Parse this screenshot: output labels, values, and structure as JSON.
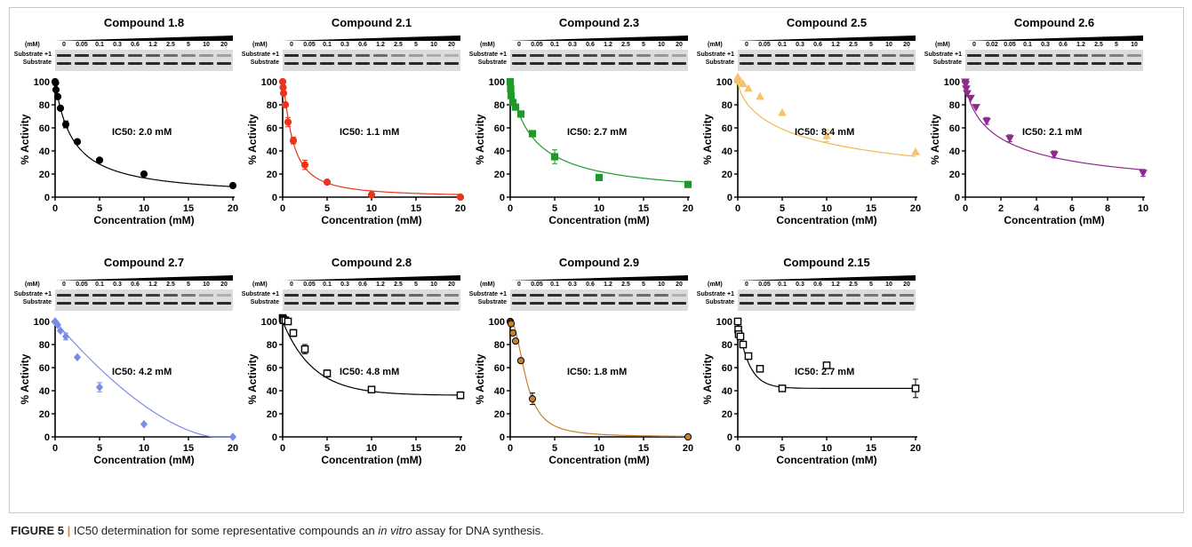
{
  "figure": {
    "label": "FIGURE 5",
    "separator": "|",
    "caption_pre": "IC50 determination for some representative compounds an ",
    "caption_italic": "in vitro",
    "caption_post": " assay for DNA synthesis."
  },
  "gel_labels": {
    "mm": "(mM)",
    "substrate_plus1": "Substrate +1",
    "substrate": "Substrate"
  },
  "axis_labels": {
    "y": "% Activity",
    "x": "Concentration (mM)"
  },
  "chart_data": [
    {
      "type": "scatter",
      "title": "Compound 1.8",
      "ic50_label": "IC50: 2.0 mM",
      "color": "#000000",
      "marker": "circle",
      "filled": true,
      "gel_concentrations": [
        "0",
        "0.05",
        "0.1",
        "0.3",
        "0.6",
        "1.2",
        "2.5",
        "5",
        "10",
        "20"
      ],
      "x": [
        0,
        0.05,
        0.1,
        0.3,
        0.6,
        1.2,
        2.5,
        5,
        10,
        20
      ],
      "y": [
        100,
        99,
        93,
        87,
        77,
        63,
        48,
        32,
        20,
        10
      ],
      "error": [
        0,
        0,
        0,
        0,
        0,
        3,
        0,
        0,
        0,
        0
      ],
      "xlim": [
        0,
        20
      ],
      "xticks": [
        0,
        5,
        10,
        15,
        20
      ],
      "ylim": [
        0,
        100
      ],
      "yticks": [
        0,
        20,
        40,
        60,
        80,
        100
      ],
      "curve": {
        "model": "hill",
        "ic50": 2.0,
        "hill": 1.0
      }
    },
    {
      "type": "scatter",
      "title": "Compound 2.1",
      "ic50_label": "IC50: 1.1 mM",
      "color": "#e8361c",
      "marker": "circle",
      "filled": true,
      "gel_concentrations": [
        "0",
        "0.05",
        "0.1",
        "0.3",
        "0.6",
        "1.2",
        "2.5",
        "5",
        "10",
        "20"
      ],
      "x": [
        0,
        0.05,
        0.1,
        0.3,
        0.6,
        1.2,
        2.5,
        5,
        10,
        20
      ],
      "y": [
        100,
        95,
        90,
        80,
        65,
        49,
        28,
        13,
        2,
        0
      ],
      "error": [
        0,
        0,
        0,
        0,
        4,
        3,
        4,
        0,
        0,
        0
      ],
      "xlim": [
        0,
        20
      ],
      "xticks": [
        0,
        5,
        10,
        15,
        20
      ],
      "ylim": [
        0,
        100
      ],
      "yticks": [
        0,
        20,
        40,
        60,
        80,
        100
      ],
      "curve": {
        "model": "hill",
        "ic50": 1.1,
        "hill": 1.3
      }
    },
    {
      "type": "scatter",
      "title": "Compound 2.3",
      "ic50_label": "IC50: 2.7 mM",
      "color": "#1f9a2a",
      "marker": "square",
      "filled": true,
      "gel_concentrations": [
        "0",
        "0.05",
        "0.1",
        "0.3",
        "0.6",
        "1.2",
        "2.5",
        "5",
        "10",
        "20"
      ],
      "x": [
        0,
        0.05,
        0.1,
        0.3,
        0.6,
        1.2,
        2.5,
        5,
        10,
        20
      ],
      "y": [
        100,
        94,
        88,
        82,
        78,
        72,
        55,
        35,
        17,
        11
      ],
      "error": [
        0,
        0,
        0,
        0,
        0,
        0,
        0,
        6,
        0,
        0
      ],
      "xlim": [
        0,
        20
      ],
      "xticks": [
        0,
        5,
        10,
        15,
        20
      ],
      "ylim": [
        0,
        100
      ],
      "yticks": [
        0,
        20,
        40,
        60,
        80,
        100
      ],
      "curve": {
        "model": "hill",
        "ic50": 2.7,
        "hill": 0.95
      }
    },
    {
      "type": "scatter",
      "title": "Compound 2.5",
      "ic50_label": "IC50: 8.4 mM",
      "color": "#f5c46a",
      "marker": "triangle-up",
      "filled": true,
      "gel_concentrations": [
        "0",
        "0.05",
        "0.1",
        "0.3",
        "0.6",
        "1.2",
        "2.5",
        "5",
        "10",
        "20"
      ],
      "x": [
        0,
        0.05,
        0.1,
        0.3,
        0.6,
        1.2,
        2.5,
        5,
        10,
        20
      ],
      "y": [
        104,
        102,
        101,
        100,
        98,
        94,
        87,
        73,
        53,
        39
      ],
      "error": [
        0,
        0,
        0,
        0,
        0,
        0,
        0,
        0,
        5,
        0
      ],
      "xlim": [
        0,
        20
      ],
      "xticks": [
        0,
        5,
        10,
        15,
        20
      ],
      "ylim": [
        0,
        100
      ],
      "yticks": [
        0,
        20,
        40,
        60,
        80,
        100
      ],
      "curve": {
        "model": "hill",
        "ic50": 8.4,
        "hill": 0.7
      }
    },
    {
      "type": "scatter",
      "title": "Compound 2.6",
      "ic50_label": "IC50: 2.1 mM",
      "color": "#8e2a8e",
      "marker": "triangle-down",
      "filled": true,
      "gel_concentrations": [
        "0",
        "0.02",
        "0.05",
        "0.1",
        "0.3",
        "0.6",
        "1.2",
        "2.5",
        "5",
        "10"
      ],
      "x": [
        0,
        0.02,
        0.05,
        0.1,
        0.3,
        0.6,
        1.2,
        2.5,
        5,
        10
      ],
      "y": [
        100,
        98,
        94,
        90,
        86,
        78,
        66,
        51,
        37,
        21
      ],
      "error": [
        0,
        0,
        0,
        0,
        0,
        0,
        3,
        3,
        3,
        3
      ],
      "xlim": [
        0,
        10
      ],
      "xticks": [
        0,
        2,
        4,
        6,
        8,
        10
      ],
      "ylim": [
        0,
        100
      ],
      "yticks": [
        0,
        20,
        40,
        60,
        80,
        100
      ],
      "curve": {
        "model": "hill",
        "ic50": 2.1,
        "hill": 0.75
      }
    },
    {
      "type": "scatter",
      "title": "Compound 2.7",
      "ic50_label": "IC50: 4.2 mM",
      "color": "#7b8ce8",
      "marker": "diamond",
      "filled": true,
      "gel_concentrations": [
        "0",
        "0.05",
        "0.1",
        "0.3",
        "0.6",
        "1.2",
        "2.5",
        "5",
        "10",
        "20"
      ],
      "x": [
        0,
        0.05,
        0.1,
        0.3,
        0.6,
        1.2,
        2.5,
        5,
        10,
        20
      ],
      "y": [
        100,
        99,
        99,
        97,
        92,
        87,
        69,
        43,
        11,
        0
      ],
      "error": [
        0,
        0,
        0,
        0,
        0,
        3,
        0,
        4,
        0,
        0
      ],
      "xlim": [
        0,
        20
      ],
      "xticks": [
        0,
        5,
        10,
        15,
        20
      ],
      "ylim": [
        0,
        100
      ],
      "yticks": [
        0,
        20,
        40,
        60,
        80,
        100
      ],
      "curve": {
        "model": "linear_decay",
        "ic50": 4.2,
        "end": 18
      }
    },
    {
      "type": "scatter",
      "title": "Compound 2.8",
      "ic50_label": "IC50: 4.8 mM",
      "color": "#000000",
      "marker": "square",
      "filled": false,
      "gel_concentrations": [
        "0",
        "0.05",
        "0.1",
        "0.3",
        "0.6",
        "1.2",
        "2.5",
        "5",
        "10",
        "20"
      ],
      "x": [
        0,
        0.05,
        0.1,
        0.3,
        0.6,
        1.2,
        2.5,
        5,
        10,
        20
      ],
      "y": [
        103,
        102,
        101,
        101,
        100,
        90,
        76,
        55,
        41,
        36
      ],
      "error": [
        0,
        0,
        0,
        0,
        0,
        3,
        4,
        3,
        2,
        3
      ],
      "xlim": [
        0,
        20
      ],
      "xticks": [
        0,
        5,
        10,
        15,
        20
      ],
      "ylim": [
        0,
        100
      ],
      "yticks": [
        0,
        20,
        40,
        60,
        80,
        100
      ],
      "curve": {
        "model": "plateau",
        "plateau": 36,
        "k": 0.29
      }
    },
    {
      "type": "scatter",
      "title": "Compound 2.9",
      "ic50_label": "IC50: 1.8 mM",
      "color": "#c7802a",
      "marker": "circle",
      "filled": true,
      "stroke": "#000000",
      "gel_concentrations": [
        "0",
        "0.05",
        "0.1",
        "0.3",
        "0.6",
        "1.2",
        "2.5",
        "5",
        "10",
        "20"
      ],
      "x": [
        0,
        0.05,
        0.1,
        0.3,
        0.6,
        1.2,
        2.5,
        5,
        10,
        20
      ],
      "y": [
        100,
        99,
        98,
        90,
        83,
        66,
        33,
        null,
        null,
        0
      ],
      "error": [
        0,
        0,
        0,
        0,
        0,
        0,
        5,
        0,
        0,
        0
      ],
      "xlim": [
        0,
        20
      ],
      "xticks": [
        0,
        5,
        10,
        15,
        20
      ],
      "ylim": [
        0,
        100
      ],
      "yticks": [
        0,
        20,
        40,
        60,
        80,
        100
      ],
      "curve": {
        "model": "hill",
        "ic50": 1.8,
        "hill": 2.2
      }
    },
    {
      "type": "scatter",
      "title": "Compound 2.15",
      "ic50_label": "IC50: 2.7 mM",
      "color": "#000000",
      "marker": "square",
      "filled": false,
      "gel_concentrations": [
        "0",
        "0.05",
        "0.1",
        "0.3",
        "0.6",
        "1.2",
        "2.5",
        "5",
        "10",
        "20"
      ],
      "x": [
        0,
        0.05,
        0.1,
        0.3,
        0.6,
        1.2,
        2.5,
        5,
        10,
        20
      ],
      "y": [
        100,
        93,
        89,
        87,
        80,
        70,
        59,
        42,
        62,
        42
      ],
      "error": [
        0,
        0,
        0,
        0,
        0,
        0,
        0,
        0,
        0,
        8
      ],
      "xlim": [
        0,
        20
      ],
      "xticks": [
        0,
        5,
        10,
        15,
        20
      ],
      "ylim": [
        0,
        100
      ],
      "yticks": [
        0,
        20,
        40,
        60,
        80,
        100
      ],
      "curve": {
        "model": "plateau",
        "plateau": 42,
        "k": 0.8
      }
    }
  ]
}
